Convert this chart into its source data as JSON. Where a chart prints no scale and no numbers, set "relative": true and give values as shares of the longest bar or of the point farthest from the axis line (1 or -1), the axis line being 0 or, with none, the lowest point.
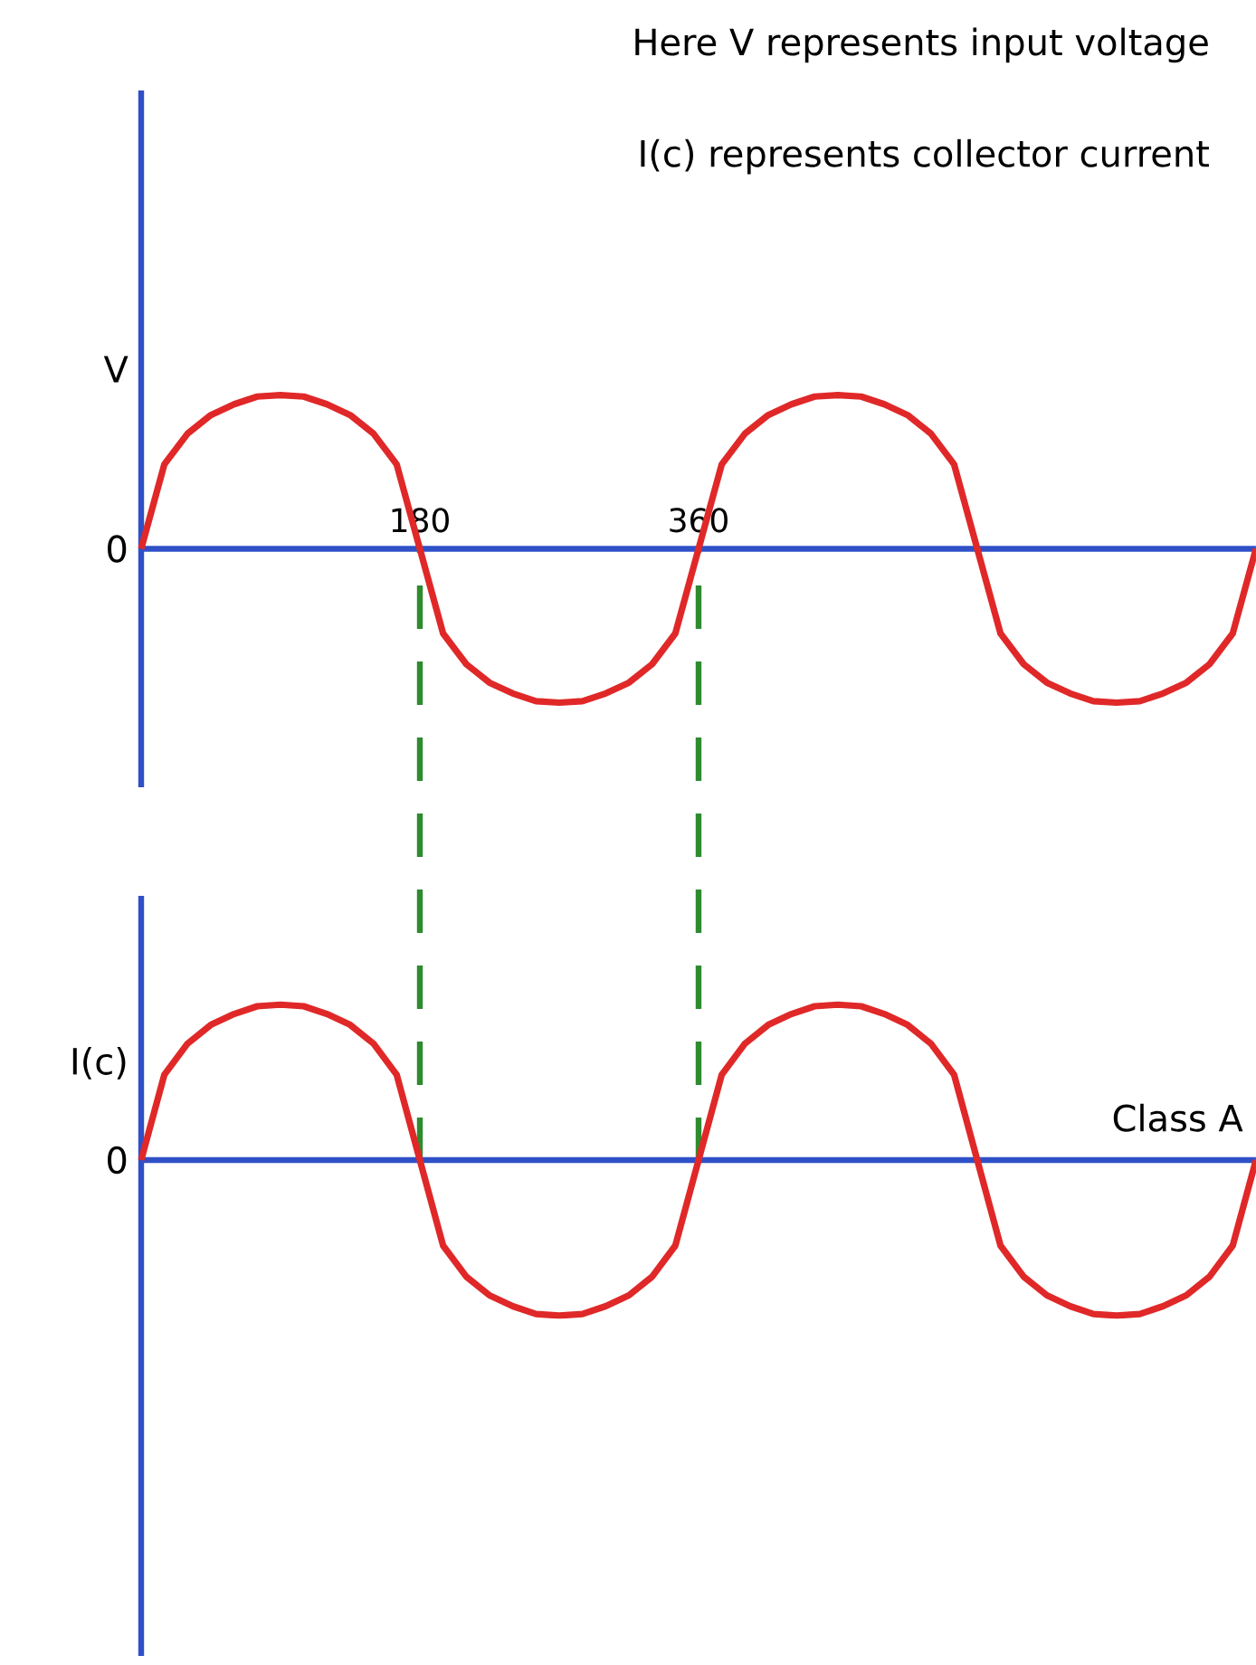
{
  "chart_data": [
    {
      "type": "line",
      "ylabel": "V",
      "relative": true,
      "xlim": [
        0,
        720
      ],
      "xticks": [
        180,
        360
      ],
      "x": [
        0,
        15,
        30,
        45,
        60,
        75,
        90,
        105,
        120,
        135,
        150,
        165,
        180,
        195,
        210,
        225,
        240,
        255,
        270,
        285,
        300,
        315,
        330,
        345,
        360,
        375,
        390,
        405,
        420,
        435,
        450,
        465,
        480,
        495,
        510,
        525,
        540,
        555,
        570,
        585,
        600,
        615,
        630,
        645,
        660,
        675,
        690,
        705,
        720
      ],
      "series": [
        {
          "color": "#e02828",
          "values": [
            0,
            0.55,
            0.75,
            0.87,
            0.94,
            0.99,
            1,
            0.99,
            0.94,
            0.87,
            0.75,
            0.55,
            0,
            -0.55,
            -0.75,
            -0.87,
            -0.94,
            -0.99,
            -1,
            -0.99,
            -0.94,
            -0.87,
            -0.75,
            -0.55,
            0,
            0.55,
            0.75,
            0.87,
            0.94,
            0.99,
            1,
            0.99,
            0.94,
            0.87,
            0.75,
            0.55,
            0,
            -0.55,
            -0.75,
            -0.87,
            -0.94,
            -0.99,
            -1,
            -0.99,
            -0.94,
            -0.87,
            -0.75,
            -0.55,
            0
          ]
        }
      ],
      "ref_lines": [
        {
          "axis": "x",
          "value": 180,
          "color": "#2e8b2e",
          "line_style": "dashed"
        },
        {
          "axis": "x",
          "value": 360,
          "color": "#2e8b2e",
          "line_style": "dashed"
        }
      ],
      "annotations": [
        "0",
        "Here V represents input voltage",
        "I(c) represents collector current"
      ]
    },
    {
      "type": "line",
      "ylabel": "I(c)",
      "relative": true,
      "xlim": [
        0,
        720
      ],
      "x": [
        0,
        15,
        30,
        45,
        60,
        75,
        90,
        105,
        120,
        135,
        150,
        165,
        180,
        195,
        210,
        225,
        240,
        255,
        270,
        285,
        300,
        315,
        330,
        345,
        360,
        375,
        390,
        405,
        420,
        435,
        450,
        465,
        480,
        495,
        510,
        525,
        540,
        555,
        570,
        585,
        600,
        615,
        630,
        645,
        660,
        675,
        690,
        705,
        720
      ],
      "series": [
        {
          "color": "#e02828",
          "values": [
            0,
            0.55,
            0.75,
            0.87,
            0.94,
            0.99,
            1,
            0.99,
            0.94,
            0.87,
            0.75,
            0.55,
            0,
            -0.55,
            -0.75,
            -0.87,
            -0.94,
            -0.99,
            -1,
            -0.99,
            -0.94,
            -0.87,
            -0.75,
            -0.55,
            0,
            0.55,
            0.75,
            0.87,
            0.94,
            0.99,
            1,
            0.99,
            0.94,
            0.87,
            0.75,
            0.55,
            0,
            -0.55,
            -0.75,
            -0.87,
            -0.94,
            -0.99,
            -1,
            -0.99,
            -0.94,
            -0.87,
            -0.75,
            -0.55,
            0
          ]
        }
      ],
      "ref_lines": [
        {
          "axis": "y",
          "value": 0,
          "color": "#3050c8",
          "line_style": "solid"
        }
      ],
      "annotations": [
        "0",
        "Class A"
      ],
      "tick_labels": false
    }
  ]
}
